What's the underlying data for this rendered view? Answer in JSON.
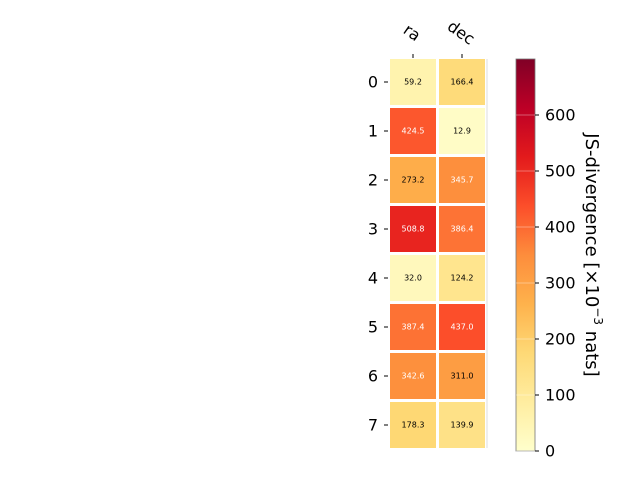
{
  "chart_data": {
    "type": "heatmap",
    "x_labels": [
      "ra",
      "dec"
    ],
    "y_labels": [
      "0",
      "1",
      "2",
      "3",
      "4",
      "5",
      "6",
      "7"
    ],
    "values": [
      [
        59.2,
        166.4
      ],
      [
        424.5,
        12.9
      ],
      [
        273.2,
        345.7
      ],
      [
        508.8,
        386.4
      ],
      [
        32.0,
        124.2
      ],
      [
        387.4,
        437.0
      ],
      [
        342.6,
        311.0
      ],
      [
        178.3,
        139.9
      ]
    ],
    "value_labels": [
      [
        "59.2",
        "166.4"
      ],
      [
        "424.5",
        "12.9"
      ],
      [
        "273.2",
        "345.7"
      ],
      [
        "508.8",
        "386.4"
      ],
      [
        "32.0",
        "124.2"
      ],
      [
        "387.4",
        "437.0"
      ],
      [
        "342.6",
        "311.0"
      ],
      [
        "178.3",
        "139.9"
      ]
    ],
    "colorbar": {
      "label_main": "JS-divergence [×10",
      "label_exponent": "−3",
      "label_unit": " nats]",
      "range": [
        0,
        700
      ],
      "ticks": [
        0,
        100,
        200,
        300,
        400,
        500,
        600
      ],
      "tick_labels": [
        "0",
        "100",
        "200",
        "300",
        "400",
        "500",
        "600"
      ]
    },
    "colormap": "YlOrRd",
    "colormap_stops": [
      "#ffffcc",
      "#ffeda0",
      "#fed976",
      "#feb24c",
      "#fd8d3c",
      "#fc4e2a",
      "#e31a1c",
      "#bd0026",
      "#800026"
    ]
  }
}
